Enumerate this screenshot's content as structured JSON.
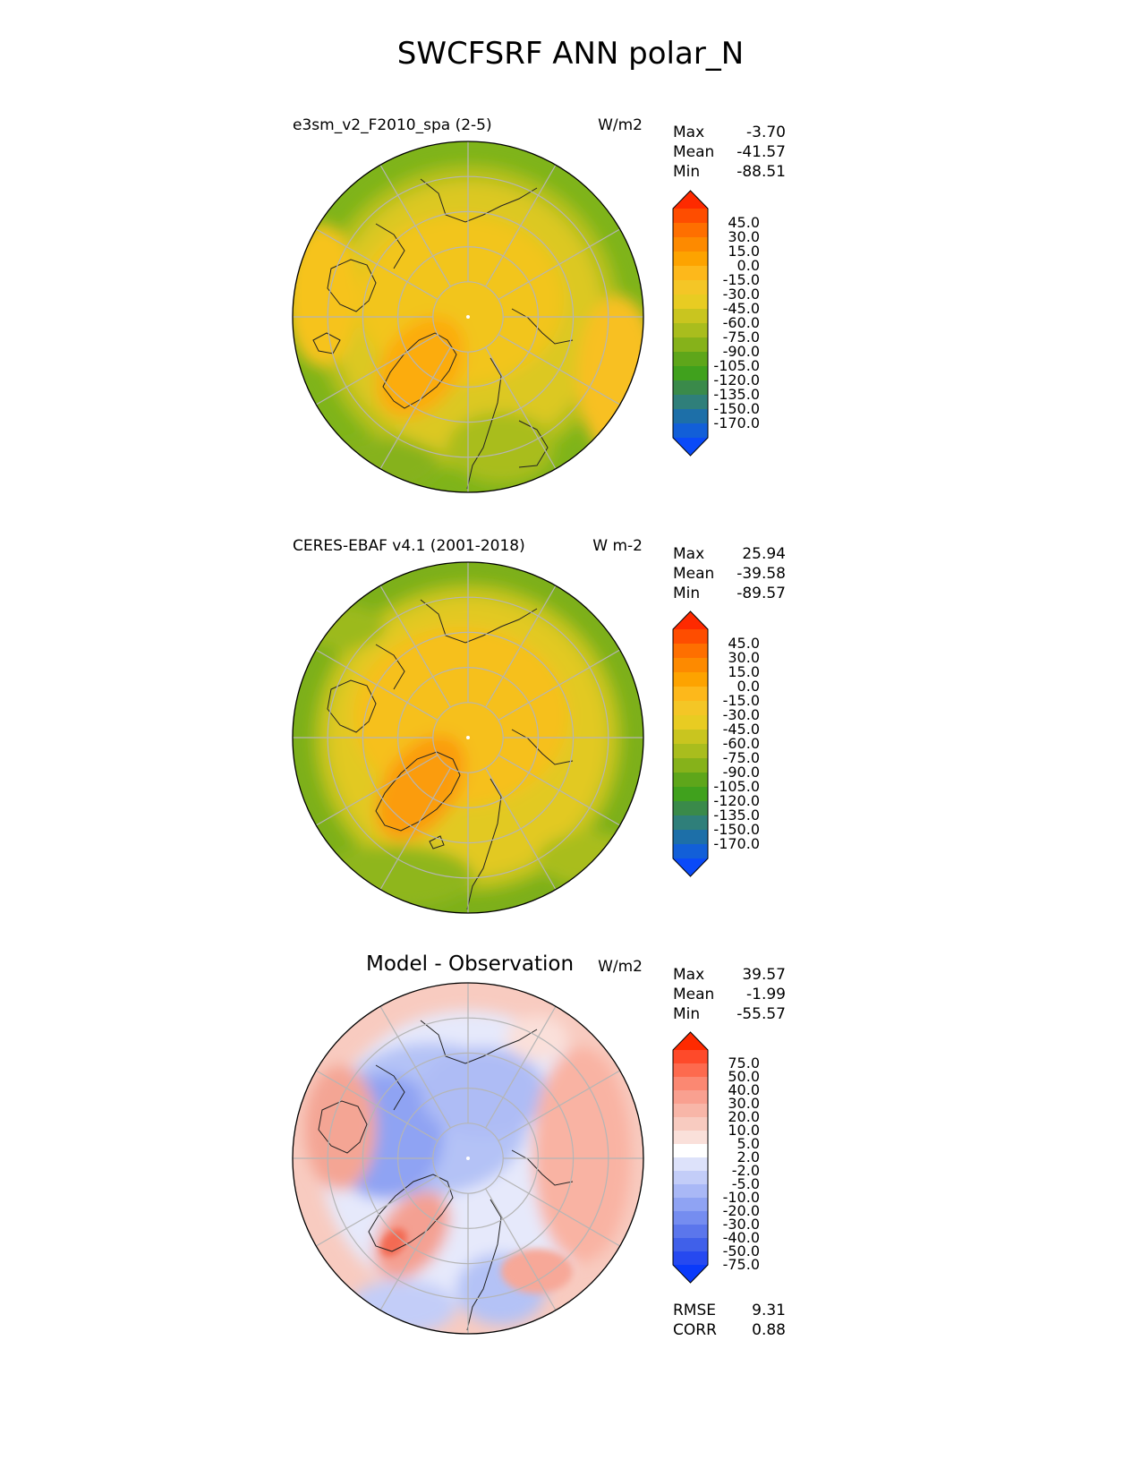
{
  "title": "SWCFSRF ANN polar_N",
  "panels": [
    {
      "title": "e3sm_v2_F2010_spa (2-5)",
      "units": "W/m2",
      "stats": [
        {
          "label": "Max",
          "value": "-3.70"
        },
        {
          "label": "Mean",
          "value": "-41.57"
        },
        {
          "label": "Min",
          "value": "-88.51"
        }
      ]
    },
    {
      "title": "CERES-EBAF v4.1 (2001-2018)",
      "units": "W m-2",
      "stats": [
        {
          "label": "Max",
          "value": "25.94"
        },
        {
          "label": "Mean",
          "value": "-39.58"
        },
        {
          "label": "Min",
          "value": "-89.57"
        }
      ]
    },
    {
      "title": "Model - Observation",
      "units": "W/m2",
      "stats": [
        {
          "label": "Max",
          "value": "39.57"
        },
        {
          "label": "Mean",
          "value": "-1.99"
        },
        {
          "label": "Min",
          "value": "-55.57"
        }
      ],
      "metrics": [
        {
          "label": "RMSE",
          "value": "9.31"
        },
        {
          "label": "CORR",
          "value": "0.88"
        }
      ]
    }
  ],
  "colorbars": {
    "field": {
      "ticks": [
        "45.0",
        "30.0",
        "15.0",
        "0.0",
        "-15.0",
        "-30.0",
        "-45.0",
        "-60.0",
        "-75.0",
        "-90.0",
        "-105.0",
        "-120.0",
        "-135.0",
        "-150.0",
        "-170.0"
      ],
      "colors": [
        "#fe2a00",
        "#fe4d00",
        "#fe6f00",
        "#fd8a00",
        "#fda300",
        "#fdb81b",
        "#f4c626",
        "#e8cc22",
        "#c9c51f",
        "#a9bd1d",
        "#86b21a",
        "#5ea61a",
        "#40a11d",
        "#3a8a4a",
        "#2f7f7a",
        "#1d6fa8",
        "#125fd8",
        "#0a4af8"
      ]
    },
    "diff": {
      "ticks": [
        "75.0",
        "50.0",
        "40.0",
        "30.0",
        "20.0",
        "10.0",
        "5.0",
        "2.0",
        "-2.0",
        "-5.0",
        "-10.0",
        "-20.0",
        "-30.0",
        "-40.0",
        "-50.0",
        "-75.0"
      ],
      "colors": [
        "#fe2a00",
        "#fe4a2a",
        "#fd6a4e",
        "#fb8872",
        "#f9a090",
        "#f8b6a8",
        "#f8cbc0",
        "#fae0da",
        "#ffffff",
        "#dde2fa",
        "#c3cdf8",
        "#a9b8f6",
        "#8fa3f3",
        "#758df0",
        "#5b76ec",
        "#4060ea",
        "#2649f0",
        "#0a3afa"
      ]
    }
  },
  "map_colors": {
    "land_outline": "#222222",
    "grid": "#b5b5b5"
  }
}
